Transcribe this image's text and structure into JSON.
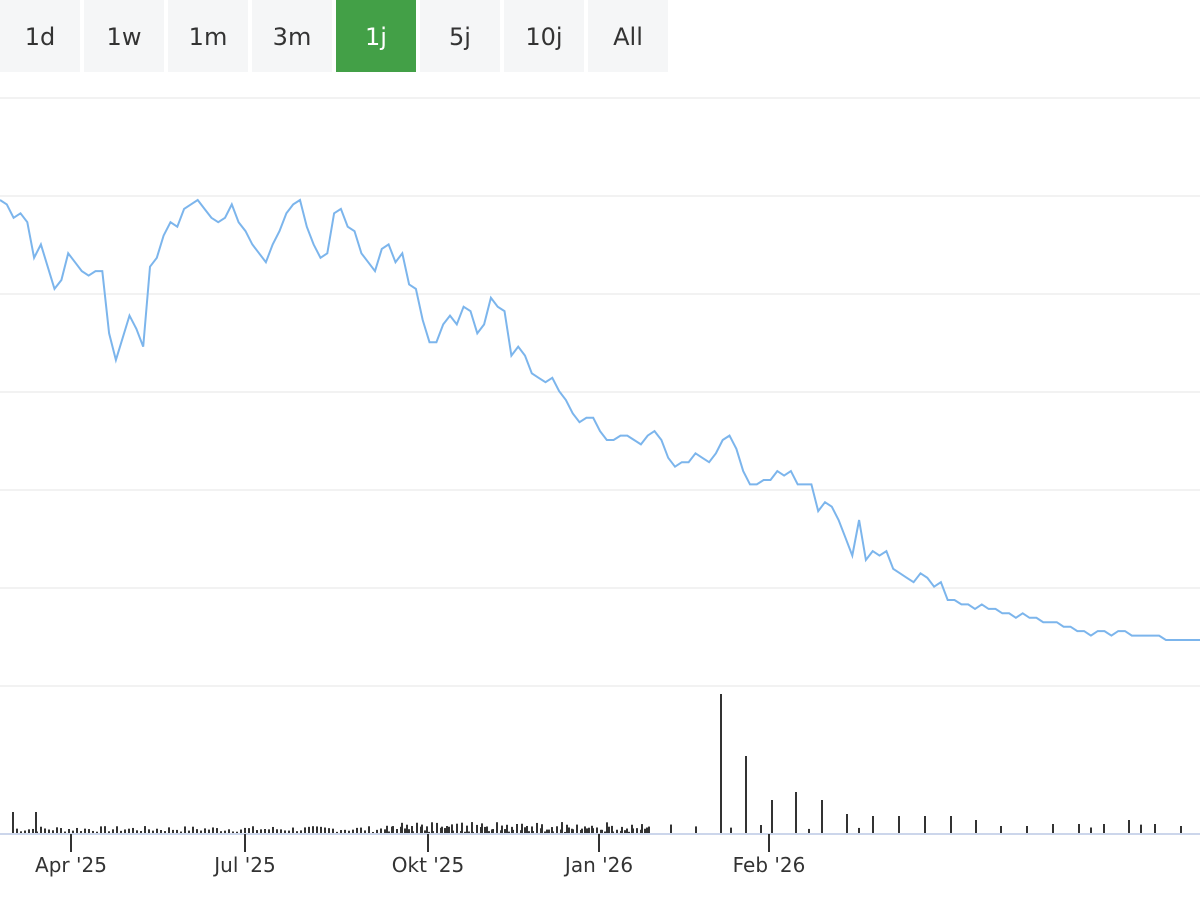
{
  "range_tabs": [
    {
      "label": "1d",
      "active": false
    },
    {
      "label": "1w",
      "active": false
    },
    {
      "label": "1m",
      "active": false
    },
    {
      "label": "3m",
      "active": false
    },
    {
      "label": "1j",
      "active": true
    },
    {
      "label": "5j",
      "active": false
    },
    {
      "label": "10j",
      "active": false
    },
    {
      "label": "All",
      "active": false
    }
  ],
  "colors": {
    "active_tab": "#43a047",
    "price_line": "#7cb5ec",
    "volume_bars": "#333333",
    "grid": "#e6e6e6"
  },
  "chart_data": {
    "type": "line",
    "title": "",
    "xlabel": "",
    "ylabel": "",
    "grid": true,
    "legend": "none",
    "x_tick_labels": [
      "Apr '25",
      "Jul '25",
      "Okt '25",
      "Jan '26",
      "Feb '26"
    ],
    "series": [
      {
        "values": [
          10.0,
          9.9,
          9.6,
          9.7,
          9.5,
          8.7,
          9.0,
          8.5,
          8.0,
          8.2,
          8.8,
          8.6,
          8.4,
          8.3,
          8.4,
          8.4,
          7.0,
          6.4,
          6.9,
          7.4,
          7.1,
          6.7,
          8.5,
          8.7,
          9.2,
          9.5,
          9.4,
          9.8,
          9.9,
          10.0,
          9.8,
          9.6,
          9.5,
          9.6,
          9.9,
          9.5,
          9.3,
          9.0,
          8.8,
          8.6,
          9.0,
          9.3,
          9.7,
          9.9,
          10.0,
          9.4,
          9.0,
          8.7,
          8.8,
          9.7,
          9.8,
          9.4,
          9.3,
          8.8,
          8.6,
          8.4,
          8.9,
          9.0,
          8.6,
          8.8,
          8.1,
          8.0,
          7.3,
          6.8,
          6.8,
          7.2,
          7.4,
          7.2,
          7.6,
          7.5,
          7.0,
          7.2,
          7.8,
          7.6,
          7.5,
          6.5,
          6.7,
          6.5,
          6.1,
          6.0,
          5.9,
          6.0,
          5.7,
          5.5,
          5.2,
          5.0,
          5.1,
          5.1,
          4.8,
          4.6,
          4.6,
          4.7,
          4.7,
          4.6,
          4.5,
          4.7,
          4.8,
          4.6,
          4.2,
          4.0,
          4.1,
          4.1,
          4.3,
          4.2,
          4.1,
          4.3,
          4.6,
          4.7,
          4.4,
          3.9,
          3.6,
          3.6,
          3.7,
          3.7,
          3.9,
          3.8,
          3.9,
          3.6,
          3.6,
          3.6,
          3.0,
          3.2,
          3.1,
          2.8,
          2.4,
          2.0,
          2.8,
          1.9,
          2.1,
          2.0,
          2.1,
          1.7,
          1.6,
          1.5,
          1.4,
          1.6,
          1.5,
          1.3,
          1.4,
          1.0,
          1.0,
          0.9,
          0.9,
          0.8,
          0.9,
          0.8,
          0.8,
          0.7,
          0.7,
          0.6,
          0.7,
          0.6,
          0.6,
          0.5,
          0.5,
          0.5,
          0.4,
          0.4,
          0.3,
          0.3,
          0.2,
          0.3,
          0.3,
          0.2,
          0.3,
          0.3,
          0.2,
          0.2,
          0.2,
          0.2,
          0.2,
          0.1,
          0.1,
          0.1,
          0.1,
          0.1,
          0.1
        ]
      }
    ]
  }
}
